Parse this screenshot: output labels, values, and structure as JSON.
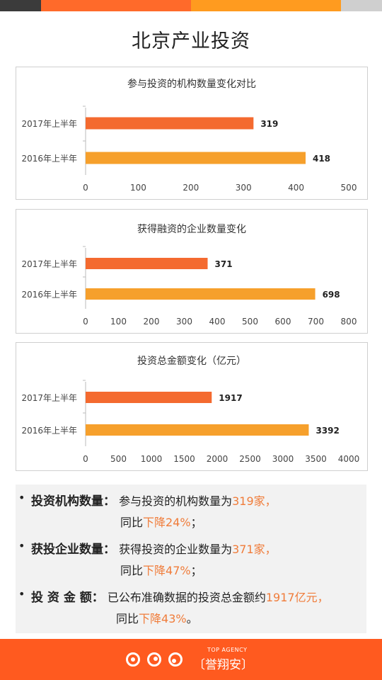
{
  "page": {
    "title": "北京产业投资"
  },
  "theme": {
    "top_bar_colors": [
      "#3b3b3b",
      "#ff6a2a",
      "#ff9b1f",
      "#cfcfcf"
    ],
    "bar_color_2017": "#f46a2f",
    "bar_color_2016": "#f6a02c",
    "accent": "#f07c3a",
    "footer_color": "#ff5a1f"
  },
  "chart_data": [
    {
      "type": "bar",
      "orientation": "horizontal",
      "title": "参与投资的机构数量变化对比",
      "categories": [
        "2017年上半年",
        "2016年上半年"
      ],
      "values": [
        319,
        418
      ],
      "xlim": [
        0,
        500
      ],
      "ticks": [
        0,
        100,
        200,
        300,
        400,
        500
      ],
      "grid": false
    },
    {
      "type": "bar",
      "orientation": "horizontal",
      "title": "获得融资的企业数量变化",
      "categories": [
        "2017年上半年",
        "2016年上半年"
      ],
      "values": [
        371,
        698
      ],
      "xlim": [
        0,
        800
      ],
      "ticks": [
        0,
        100,
        200,
        300,
        400,
        500,
        600,
        700,
        800
      ],
      "grid": false
    },
    {
      "type": "bar",
      "orientation": "horizontal",
      "title": "投资总金额变化（亿元）",
      "categories": [
        "2017年上半年",
        "2016年上半年"
      ],
      "values": [
        1917,
        3392
      ],
      "xlim": [
        0,
        4000
      ],
      "ticks": [
        0,
        500,
        1000,
        1500,
        2000,
        2500,
        3000,
        3500,
        4000
      ],
      "grid": false
    }
  ],
  "summary": {
    "items": [
      {
        "bullet": "•",
        "label": "投资机构数量：",
        "text_a": "参与投资的机构数量为",
        "hl_a": "319家，",
        "text_b": "同比",
        "hl_b": "下降24%",
        "tail": "；"
      },
      {
        "bullet": "•",
        "label": "获投企业数量：",
        "text_a": "获得投资的企业数量为",
        "hl_a": "371家，",
        "text_b": "同比",
        "hl_b": "下降47%",
        "tail": "；"
      },
      {
        "bullet": "•",
        "label": "投 资 金 额：",
        "text_a": "已公布准确数据的投资总金额约",
        "hl_a": "1917亿元，",
        "text_b": "同比",
        "hl_b": "下降43%",
        "tail": "。"
      }
    ]
  },
  "footer": {
    "brand_en": "TOP AGENCY",
    "brand_cn": "〔誉翔安〕"
  }
}
